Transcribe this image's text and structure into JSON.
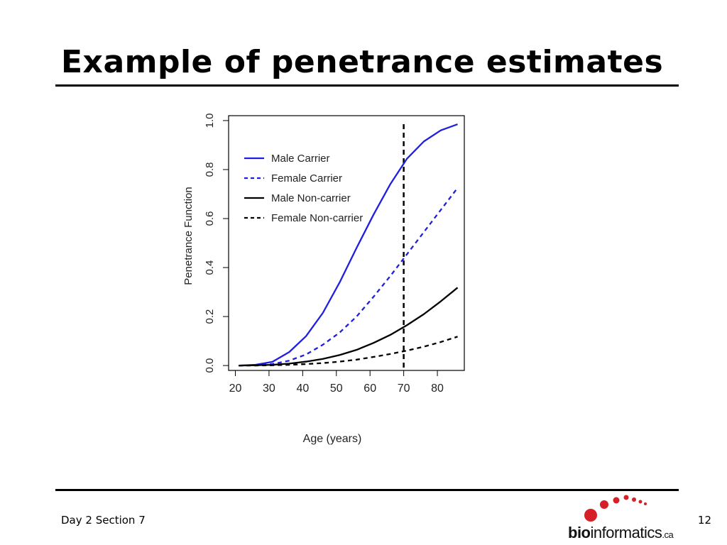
{
  "slide": {
    "title": "Example of penetrance estimates",
    "footer_left": "Day 2 Section 7",
    "page_number": "12"
  },
  "logo": {
    "text_bold": "bio",
    "text_regular": "informatics",
    "text_suffix": ".ca",
    "dot_color": "#d62027"
  },
  "chart_data": {
    "type": "line",
    "title": "",
    "xlabel": "Age (years)",
    "ylabel": "Penetrance Function",
    "xlim": [
      18,
      88
    ],
    "ylim": [
      -0.02,
      1.02
    ],
    "xticks": [
      20,
      30,
      40,
      50,
      60,
      70,
      80
    ],
    "yticks": [
      0.0,
      0.2,
      0.4,
      0.6,
      0.8,
      1.0
    ],
    "ytick_labels": [
      "0.0",
      "0.2",
      "0.4",
      "0.6",
      "0.8",
      "1.0"
    ],
    "grid": false,
    "legend_position": "top-left",
    "reference_line": {
      "x": 70,
      "style": "dashed",
      "color": "#000000"
    },
    "series": [
      {
        "name": "Male Carrier",
        "color": "#1f1fe0",
        "dash": "solid",
        "x": [
          21,
          26,
          31,
          36,
          41,
          46,
          51,
          56,
          61,
          66,
          71,
          76,
          81,
          86
        ],
        "y": [
          0.0,
          0.003,
          0.015,
          0.055,
          0.12,
          0.215,
          0.34,
          0.48,
          0.615,
          0.74,
          0.845,
          0.915,
          0.96,
          0.985
        ]
      },
      {
        "name": "Female Carrier",
        "color": "#1f1fe0",
        "dash": "dashed",
        "x": [
          21,
          26,
          31,
          36,
          41,
          46,
          51,
          56,
          61,
          66,
          71,
          76,
          81,
          86
        ],
        "y": [
          0.0,
          0.001,
          0.006,
          0.02,
          0.045,
          0.085,
          0.135,
          0.2,
          0.28,
          0.365,
          0.455,
          0.545,
          0.635,
          0.725
        ]
      },
      {
        "name": "Male Non-carrier",
        "color": "#000000",
        "dash": "solid",
        "x": [
          21,
          26,
          31,
          36,
          41,
          46,
          51,
          56,
          61,
          66,
          71,
          76,
          81,
          86
        ],
        "y": [
          0.0,
          0.001,
          0.003,
          0.008,
          0.016,
          0.027,
          0.043,
          0.064,
          0.092,
          0.125,
          0.165,
          0.21,
          0.262,
          0.318
        ]
      },
      {
        "name": "Female Non-carrier",
        "color": "#000000",
        "dash": "dashed",
        "x": [
          21,
          26,
          31,
          36,
          41,
          46,
          51,
          56,
          61,
          66,
          71,
          76,
          81,
          86
        ],
        "y": [
          0.0,
          0.0,
          0.001,
          0.003,
          0.006,
          0.01,
          0.016,
          0.024,
          0.035,
          0.047,
          0.061,
          0.077,
          0.096,
          0.118
        ]
      }
    ]
  }
}
